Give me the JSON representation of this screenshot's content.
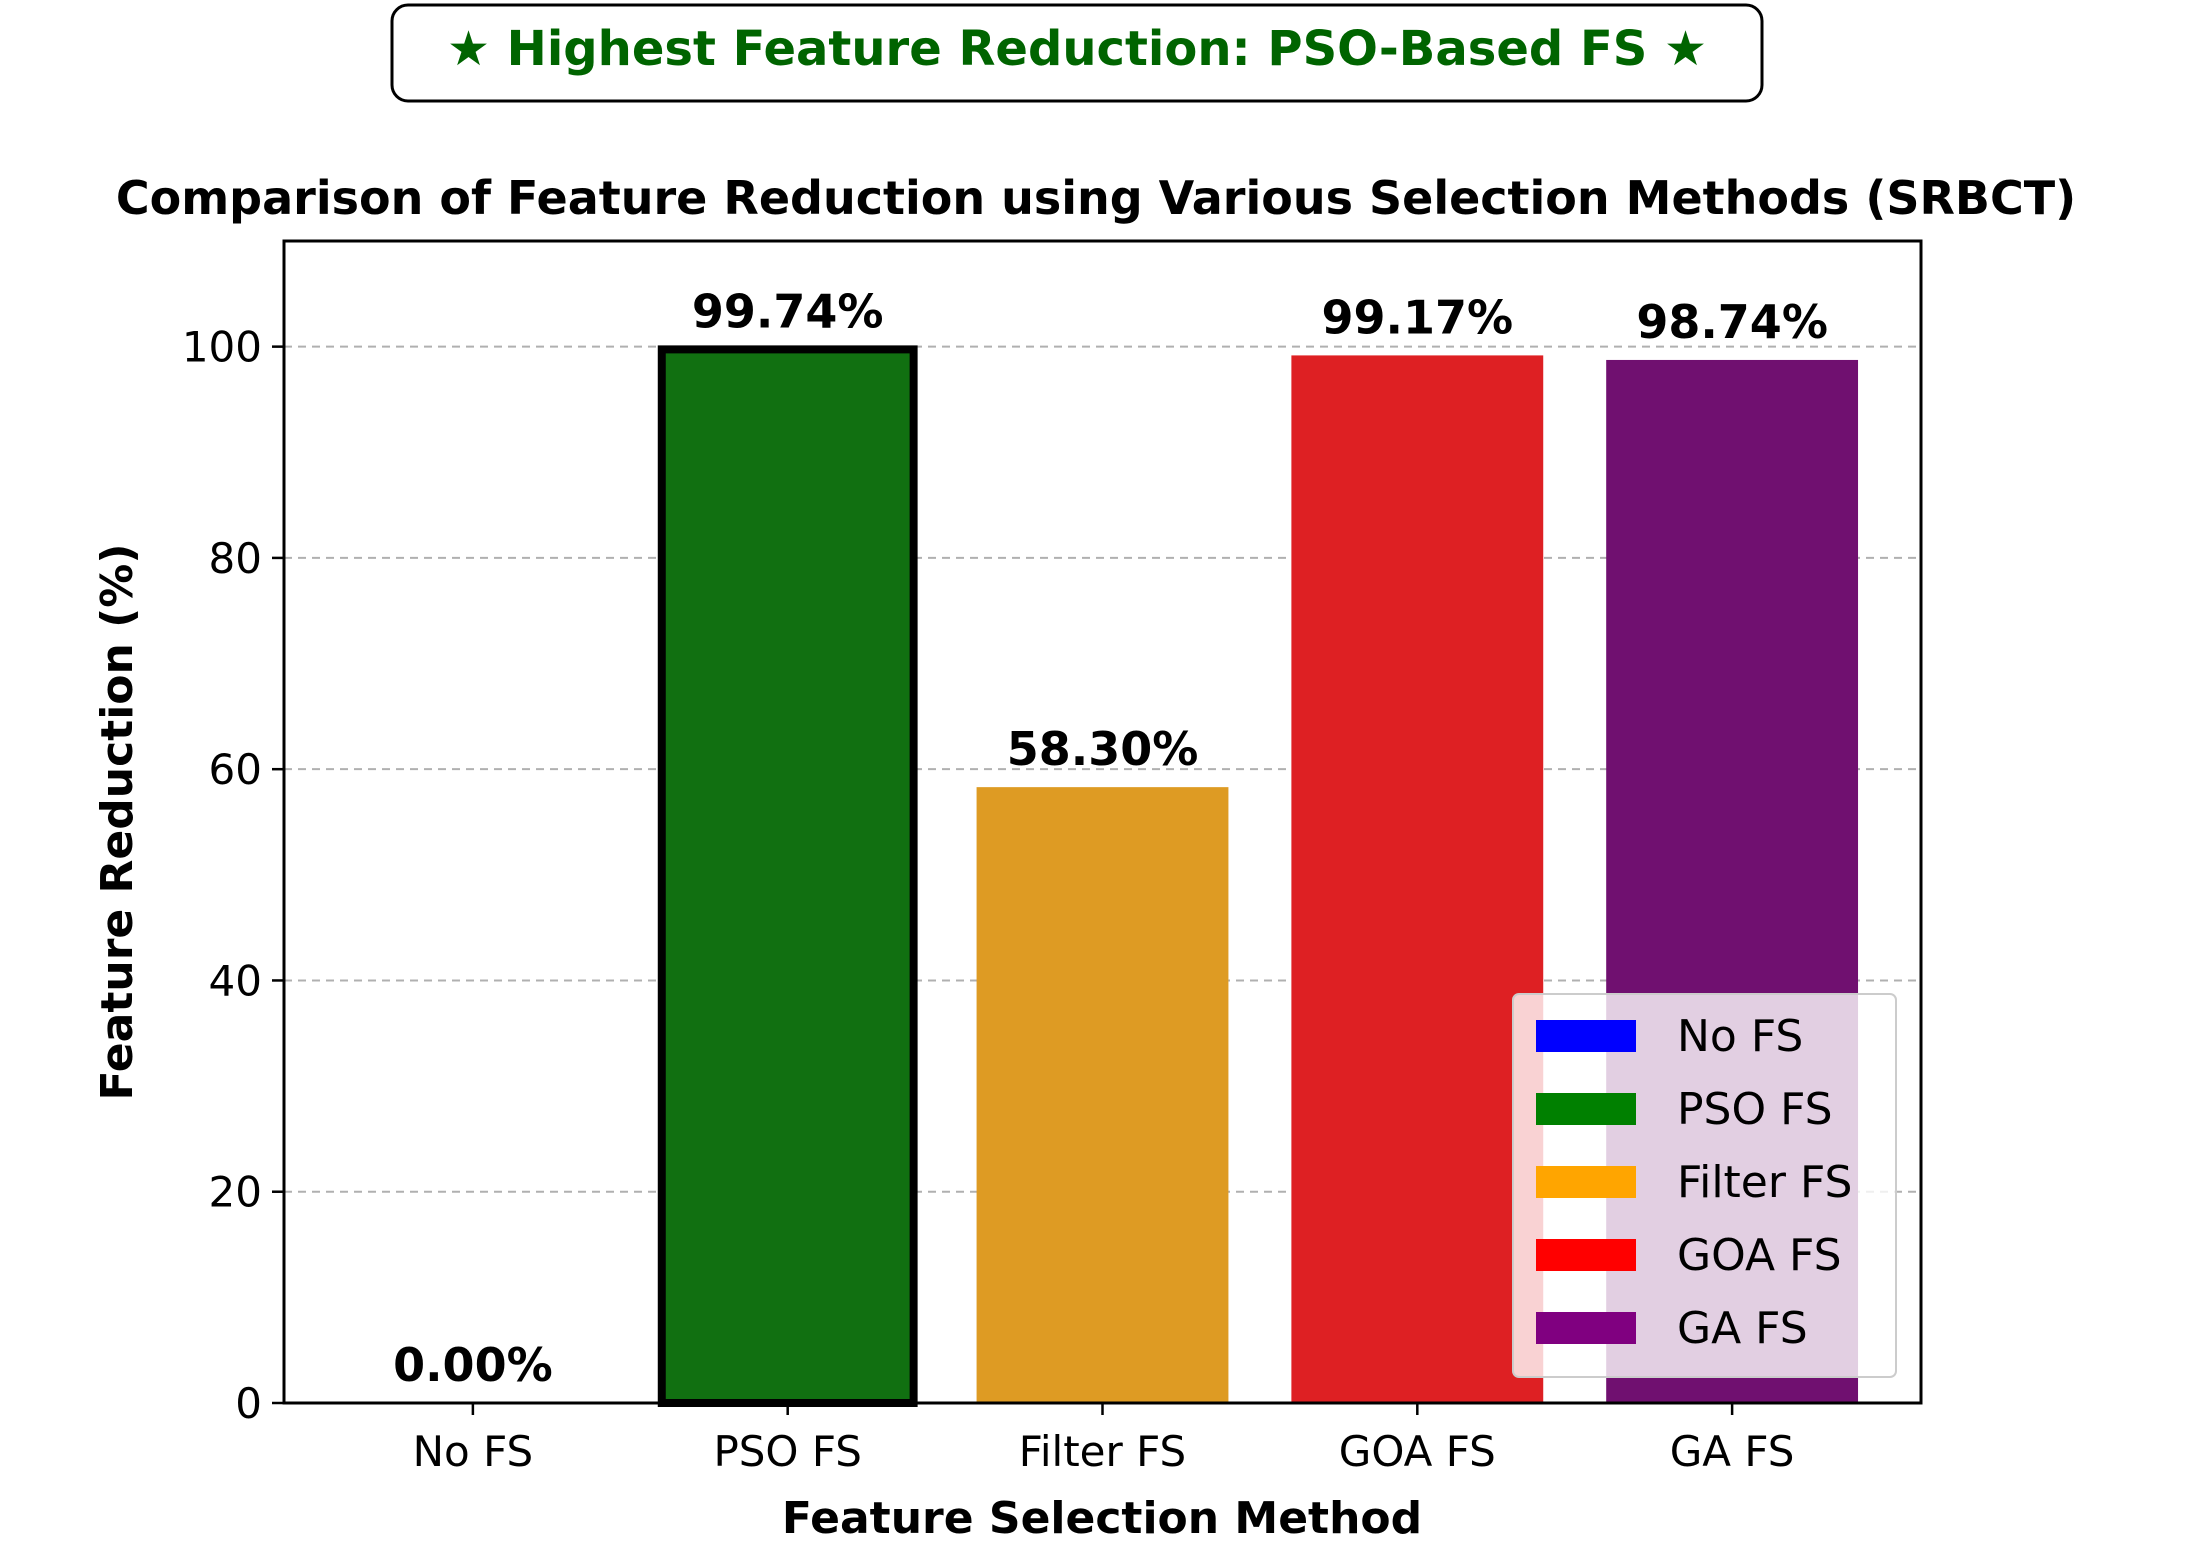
{
  "banner": {
    "text": "★ Highest Feature Reduction: PSO-Based FS ★",
    "color": "#006400"
  },
  "chart_data": {
    "type": "bar",
    "title": "Comparison of Feature Reduction using Various Selection Methods (SRBCT)",
    "xlabel": "Feature Selection Method",
    "ylabel": "Feature Reduction (%)",
    "categories": [
      "No FS",
      "PSO FS",
      "Filter FS",
      "GOA FS",
      "GA FS"
    ],
    "values": [
      0.0,
      99.74,
      58.3,
      99.17,
      98.74
    ],
    "value_labels": [
      "0.00%",
      "99.74%",
      "58.30%",
      "99.17%",
      "98.74%"
    ],
    "bar_colors": [
      "#0000ff",
      "#117011",
      "#de9b23",
      "#de2023",
      "#701070"
    ],
    "highlighted": "PSO FS",
    "ylim": [
      0,
      110
    ],
    "yticks": [
      0,
      20,
      40,
      60,
      80,
      100
    ],
    "grid": "y dashed",
    "legend": {
      "placement": "lower-right",
      "entries": [
        {
          "label": "No FS",
          "color": "#0000ff"
        },
        {
          "label": "PSO FS",
          "color": "#008000"
        },
        {
          "label": "Filter FS",
          "color": "#ffa500"
        },
        {
          "label": "GOA FS",
          "color": "#ff0000"
        },
        {
          "label": "GA FS",
          "color": "#800080"
        }
      ]
    }
  }
}
